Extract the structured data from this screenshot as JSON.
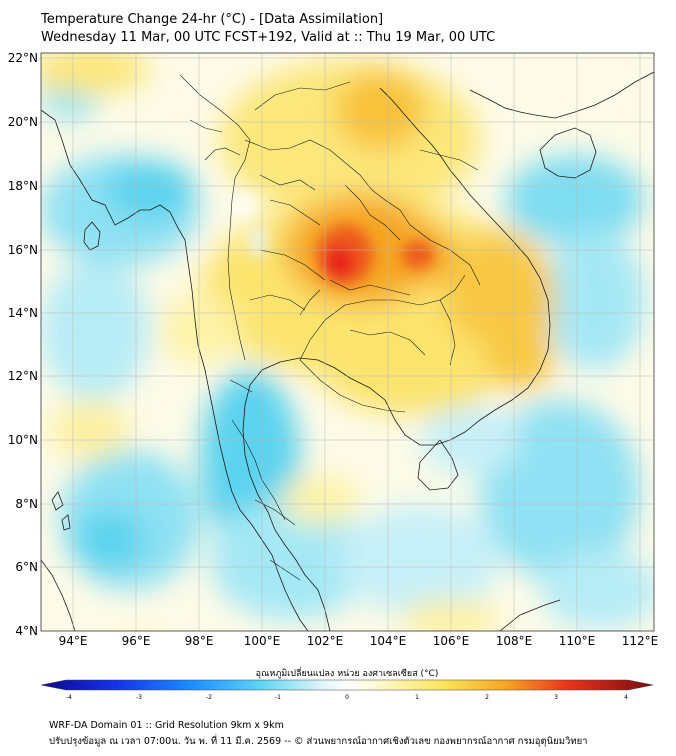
{
  "header": {
    "title_line1": "Temperature Change 24-hr (°C) - [Data Assimilation]",
    "title_line2": "Wednesday 11 Mar, 00 UTC FCST+192, Valid at :: Thu 19 Mar, 00 UTC"
  },
  "map": {
    "lat_labels": [
      "22°N",
      "20°N",
      "18°N",
      "16°N",
      "14°N",
      "12°N",
      "10°N",
      "8°N",
      "6°N",
      "4°N"
    ],
    "lon_labels": [
      "94°E",
      "96°E",
      "98°E",
      "100°E",
      "102°E",
      "104°E",
      "106°E",
      "108°E",
      "110°E",
      "112°E"
    ],
    "lat_range": [
      4,
      22.2
    ],
    "lon_range": [
      93,
      112.5
    ],
    "hotspot_color": "#e8201a",
    "warm_color": "#f5b52a",
    "cool_color": "#4fd0ea"
  },
  "colorbar": {
    "label": "อุณหภูมิเปลี่ยนแปลง หน่วย องศาเซลเซียส (°C)",
    "ticks": [
      "-4",
      "-3",
      "-2",
      "-1",
      "0",
      "1",
      "2",
      "3",
      "4"
    ],
    "range": [
      -4,
      4
    ]
  },
  "footer": {
    "line1": "WRF-DA Domain 01 :: Grid Resolution 9km x 9km",
    "line2": "ปรับปรุงข้อมูล ณ เวลา 07:00น. วัน พ. ที่ 11 มี.ค. 2569 -- © ส่วนพยากรณ์อากาศเชิงตัวเลข กองพยากรณ์อากาศ กรมอุตุนิยมวิทยา"
  }
}
